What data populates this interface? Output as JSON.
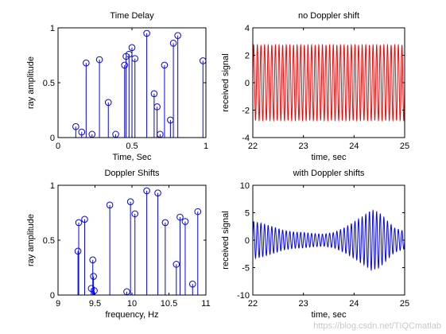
{
  "watermark": "https://blog.csdn.net/TIQCmatlab",
  "colors": {
    "stem": "#0000ff",
    "red_line": "#ff0000",
    "blue_line": "#0000ff",
    "axes": "#000000",
    "background": "#ffffff"
  },
  "chart_data": [
    {
      "id": "ax1",
      "type": "stem",
      "title": "Time Delay",
      "xlabel": "Time, Sec",
      "ylabel": "ray amplitude",
      "xlim": [
        0,
        1
      ],
      "ylim": [
        0,
        1
      ],
      "xticks": [
        0,
        0.5,
        1
      ],
      "xticklabels": [
        "0",
        "0.5",
        "1"
      ],
      "yticks": [
        0,
        0.5,
        1
      ],
      "yticklabels": [
        "0",
        "0.5",
        "1"
      ],
      "grid": false,
      "x": [
        0.12,
        0.16,
        0.19,
        0.23,
        0.28,
        0.34,
        0.39,
        0.45,
        0.46,
        0.48,
        0.5,
        0.52,
        0.6,
        0.65,
        0.67,
        0.69,
        0.72,
        0.76,
        0.78,
        0.81,
        0.98
      ],
      "values": [
        0.1,
        0.05,
        0.68,
        0.03,
        0.71,
        0.32,
        0.03,
        0.66,
        0.74,
        0.76,
        0.82,
        0.72,
        0.95,
        0.4,
        0.28,
        0.03,
        0.66,
        0.16,
        0.86,
        0.93,
        0.7
      ]
    },
    {
      "id": "ax2",
      "type": "line",
      "title": "no Doppler shift",
      "xlabel": "time, sec",
      "ylabel": "received signal",
      "xlim": [
        22,
        25
      ],
      "ylim": [
        -4,
        4
      ],
      "xticks": [
        22,
        23,
        24,
        25
      ],
      "xticklabels": [
        "22",
        "23",
        "24",
        "25"
      ],
      "yticks": [
        -4,
        -2,
        0,
        2,
        4
      ],
      "yticklabels": [
        "-4",
        "-2",
        "0",
        "2",
        "4"
      ],
      "grid": false,
      "signal": {
        "envelope": "constant",
        "amplitude": 2.75,
        "frequency_hz": 14,
        "start": 22,
        "end": 25
      }
    },
    {
      "id": "ax3",
      "type": "stem",
      "title": "Doppler Shifts",
      "xlabel": "frequency, Hz",
      "ylabel": "ray amplitude",
      "xlim": [
        9,
        11
      ],
      "ylim": [
        0,
        1
      ],
      "xticks": [
        9,
        9.5,
        10,
        10.5,
        11
      ],
      "xticklabels": [
        "9",
        "9.5",
        "10",
        "10.5",
        "11"
      ],
      "yticks": [
        0,
        0.5,
        1
      ],
      "yticklabels": [
        "0",
        "0.5",
        "1"
      ],
      "grid": false,
      "x": [
        9.27,
        9.28,
        9.36,
        9.45,
        9.47,
        9.48,
        9.49,
        9.7,
        9.93,
        9.98,
        10.04,
        10.2,
        10.35,
        10.45,
        10.6,
        10.65,
        10.72,
        10.82,
        10.89
      ],
      "values": [
        0.4,
        0.66,
        0.69,
        0.06,
        0.32,
        0.17,
        0.04,
        0.82,
        0.03,
        0.85,
        0.74,
        0.95,
        0.93,
        0.66,
        0.28,
        0.71,
        0.67,
        0.1,
        0.76
      ]
    },
    {
      "id": "ax4",
      "type": "line",
      "title": "with Doppler shifts",
      "xlabel": "time, sec",
      "ylabel": "received signal",
      "xlim": [
        22,
        25
      ],
      "ylim": [
        -10,
        10
      ],
      "xticks": [
        22,
        23,
        24,
        25
      ],
      "xticklabels": [
        "22",
        "23",
        "24",
        "25"
      ],
      "yticks": [
        -10,
        -5,
        0,
        5,
        10
      ],
      "yticklabels": [
        "-10",
        "-5",
        "0",
        "5",
        "10"
      ],
      "grid": false,
      "signal": {
        "frequency_hz": 14,
        "start": 22,
        "end": 25,
        "envelope_t": [
          22.0,
          22.2,
          22.4,
          22.6,
          22.8,
          23.0,
          23.2,
          23.4,
          23.6,
          23.8,
          24.0,
          24.2,
          24.35,
          24.5,
          24.65,
          24.8,
          25.0
        ],
        "envelope_a": [
          3.4,
          3.0,
          2.4,
          1.8,
          1.5,
          1.4,
          1.2,
          1.1,
          1.4,
          2.2,
          3.3,
          4.5,
          5.5,
          5.0,
          3.6,
          2.2,
          1.6
        ]
      }
    }
  ]
}
